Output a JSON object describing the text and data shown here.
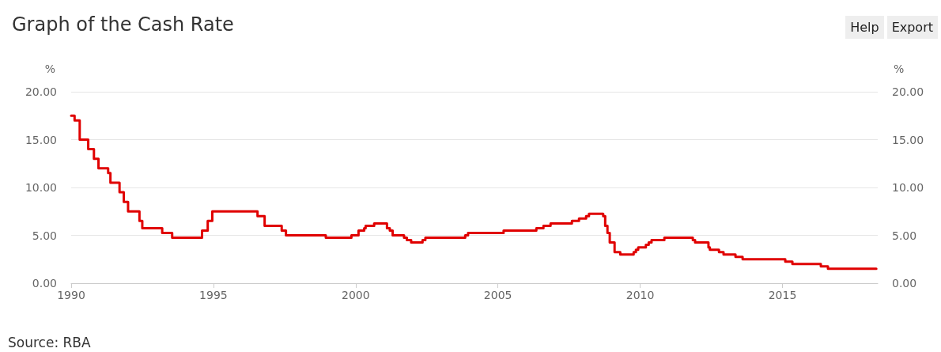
{
  "chart_data": {
    "type": "step",
    "title": "Graph of the Cash Rate",
    "ylabel": "%",
    "y2label": "%",
    "annotations": [
      "Source: RBA",
      "Help",
      "Export"
    ],
    "x": [
      1990.0,
      1990.12,
      1990.3,
      1990.6,
      1990.8,
      1990.96,
      1991.3,
      1991.38,
      1991.7,
      1991.85,
      1992.0,
      1992.4,
      1992.5,
      1993.2,
      1993.55,
      1994.6,
      1994.8,
      1994.96,
      1996.55,
      1996.8,
      1997.4,
      1997.55,
      1998.95,
      1999.85,
      2000.1,
      2000.3,
      2000.35,
      2000.65,
      2001.1,
      2001.2,
      2001.3,
      2001.7,
      2001.8,
      2001.95,
      2002.35,
      2002.45,
      2003.85,
      2003.95,
      2005.2,
      2006.35,
      2006.6,
      2006.85,
      2007.6,
      2007.85,
      2008.1,
      2008.2,
      2008.7,
      2008.77,
      2008.85,
      2008.93,
      2009.1,
      2009.3,
      2009.77,
      2009.85,
      2009.93,
      2010.2,
      2010.3,
      2010.4,
      2010.85,
      2011.85,
      2011.93,
      2012.4,
      2012.45,
      2012.77,
      2012.93,
      2013.35,
      2013.6,
      2015.1,
      2015.35,
      2016.35,
      2016.6,
      2018.3
    ],
    "series": [
      {
        "color": "#e00000",
        "values": [
          17.5,
          17.0,
          15.0,
          14.0,
          13.0,
          12.0,
          11.5,
          10.5,
          9.5,
          8.5,
          7.5,
          6.5,
          5.75,
          5.25,
          4.75,
          5.5,
          6.5,
          7.5,
          7.0,
          6.0,
          5.5,
          5.0,
          4.75,
          5.0,
          5.5,
          5.75,
          6.0,
          6.25,
          5.75,
          5.5,
          5.0,
          4.75,
          4.5,
          4.25,
          4.5,
          4.75,
          5.0,
          5.25,
          5.5,
          5.75,
          6.0,
          6.25,
          6.5,
          6.75,
          7.0,
          7.25,
          7.0,
          6.0,
          5.25,
          4.25,
          3.25,
          3.0,
          3.25,
          3.5,
          3.75,
          4.0,
          4.25,
          4.5,
          4.75,
          4.5,
          4.25,
          3.75,
          3.5,
          3.25,
          3.0,
          2.75,
          2.5,
          2.25,
          2.0,
          1.75,
          1.5,
          1.5
        ]
      }
    ],
    "xlim": [
      1990,
      2018.35
    ],
    "xticks": [
      1990,
      1995,
      2000,
      2005,
      2010,
      2015
    ],
    "ylim": [
      0,
      20
    ],
    "yticks": [
      {
        "value": 0,
        "label": "0.00"
      },
      {
        "value": 5,
        "label": "5.00"
      },
      {
        "value": 10,
        "label": "10.00"
      },
      {
        "value": 15,
        "label": "15.00"
      },
      {
        "value": 20,
        "label": "20.00"
      }
    ],
    "y2lim": [
      0,
      20
    ],
    "y2ticks": [
      {
        "value": 0,
        "label": "0.00"
      },
      {
        "value": 5,
        "label": "5.00"
      },
      {
        "value": 10,
        "label": "10.00"
      },
      {
        "value": 15,
        "label": "15.00"
      },
      {
        "value": 20,
        "label": "20.00"
      }
    ],
    "grid": "y",
    "marker": "none",
    "line_style": "solid"
  }
}
